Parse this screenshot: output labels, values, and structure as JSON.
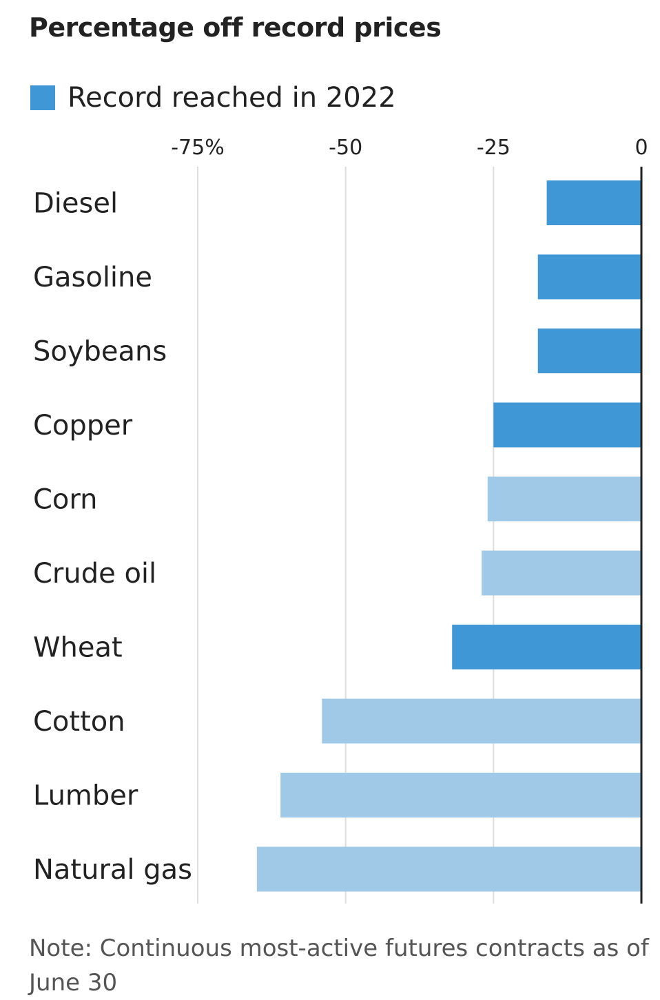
{
  "chart_data": {
    "type": "bar",
    "orientation": "horizontal",
    "title": "Percentage off record prices",
    "legend": [
      {
        "label": "Record reached in 2022",
        "color": "#3f97d6"
      }
    ],
    "categories": [
      "Diesel",
      "Gasoline",
      "Soybeans",
      "Copper",
      "Corn",
      "Crude oil",
      "Wheat",
      "Cotton",
      "Lumber",
      "Natural gas"
    ],
    "values": [
      -16,
      -17.5,
      -17.5,
      -25,
      -26,
      -27,
      -32,
      -54,
      -61,
      -65
    ],
    "record_in_2022": [
      true,
      true,
      true,
      true,
      false,
      false,
      true,
      false,
      false,
      false
    ],
    "colors": {
      "record_2022": "#3f97d6",
      "other": "#a0c9e8"
    },
    "xlim": [
      -75,
      0
    ],
    "xticks": [
      -75,
      -50,
      -25,
      0
    ],
    "xtick_labels": [
      "-75%",
      "-50",
      "-25",
      "0"
    ],
    "grid": true,
    "legend_position": "top-left",
    "note": "Note: Continuous most-active futures contracts as of June 30"
  }
}
